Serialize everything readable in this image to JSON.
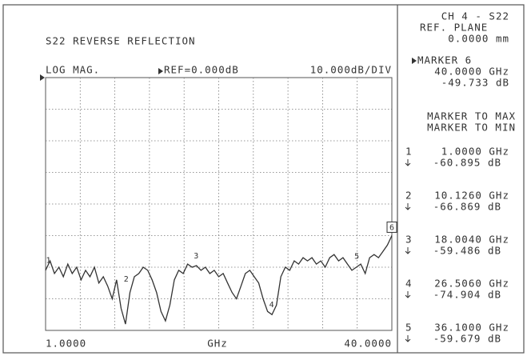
{
  "chart_data": {
    "type": "line",
    "title": "S22 REVERSE REFLECTION",
    "format": "LOG MAG.",
    "reference": "REF=0.000dB",
    "scale": "10.000dB/DIV",
    "x_label": "GHz",
    "xlim": [
      1,
      40
    ],
    "xticks": [
      {
        "value": 1,
        "label": "1.0000"
      },
      {
        "value": 40,
        "label": "40.0000"
      }
    ],
    "ylim": [
      -80,
      0
    ],
    "grid": true,
    "xdivisions": 10,
    "ydivisions": 8,
    "x": [
      1,
      1.5,
      2,
      2.5,
      3,
      3.5,
      4,
      4.5,
      5,
      5.5,
      6,
      6.5,
      7,
      7.5,
      8,
      8.5,
      9,
      9.5,
      10,
      10.5,
      11,
      11.5,
      12,
      12.5,
      13,
      13.5,
      14,
      14.5,
      15,
      15.5,
      16,
      16.5,
      17,
      17.5,
      18,
      18.5,
      19,
      19.5,
      20,
      20.5,
      21,
      21.5,
      22,
      22.5,
      23,
      23.5,
      24,
      24.5,
      25,
      25.5,
      26,
      26.5,
      27,
      27.5,
      28,
      28.5,
      29,
      29.5,
      30,
      30.5,
      31,
      31.5,
      32,
      32.5,
      33,
      33.5,
      34,
      34.5,
      35,
      35.5,
      36,
      36.5,
      37,
      37.5,
      38,
      38.5,
      39,
      39.5,
      40
    ],
    "series": [
      {
        "color": "#333333",
        "values": [
          -61,
          -58,
          -62,
          -60,
          -63,
          -59,
          -62,
          -60,
          -64,
          -61,
          -63,
          -60,
          -65,
          -63,
          -66,
          -70,
          -64,
          -73,
          -78,
          -68,
          -63,
          -62,
          -60,
          -61,
          -64,
          -68,
          -74,
          -77,
          -72,
          -64,
          -61,
          -62,
          -59,
          -60,
          -59.5,
          -61,
          -60,
          -62,
          -61,
          -63,
          -62,
          -65,
          -68,
          -70,
          -66,
          -62,
          -61,
          -63,
          -65,
          -70,
          -74,
          -75,
          -72,
          -63,
          -60,
          -61,
          -58,
          -59,
          -57,
          -58,
          -57,
          -59,
          -58,
          -60,
          -57,
          -56,
          -58,
          -57,
          -59,
          -61,
          -60,
          -59,
          -62,
          -57,
          -56,
          -57,
          -55,
          -53,
          -50
        ]
      }
    ],
    "channel": "CH 4 - S22",
    "ref_plane_label": "REF. PLANE",
    "ref_plane": "0.0000 mm",
    "active_marker": {
      "number": "6",
      "label": "MARKER 6",
      "x": 40,
      "y": -49.733,
      "x_label": "40.0000 GHz",
      "y_label": "-49.733 dB"
    },
    "menu": [
      "MARKER TO MAX",
      "MARKER TO MIN"
    ],
    "markers": [
      {
        "number": "1",
        "x": 1,
        "y": -60.895,
        "x_label": "1.0000 GHz",
        "y_label": "-60.895 dB"
      },
      {
        "number": "2",
        "x": 10.126,
        "y": -66.869,
        "x_label": "10.1260 GHz",
        "y_label": "-66.869 dB"
      },
      {
        "number": "3",
        "x": 18.004,
        "y": -59.486,
        "x_label": "18.0040 GHz",
        "y_label": "-59.486 dB"
      },
      {
        "number": "4",
        "x": 26.506,
        "y": -74.904,
        "x_label": "26.5060 GHz",
        "y_label": "-74.904 dB"
      },
      {
        "number": "5",
        "x": 36.1,
        "y": -59.679,
        "x_label": "36.1000 GHz",
        "y_label": "-59.679 dB"
      }
    ]
  }
}
